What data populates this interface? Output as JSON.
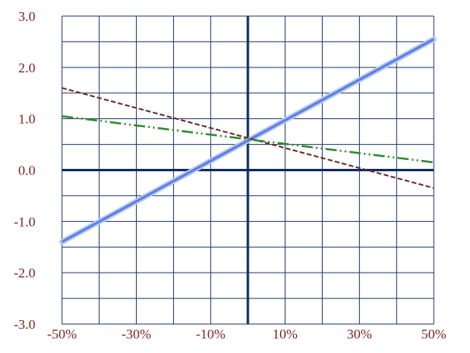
{
  "chart_data": {
    "type": "line",
    "title": "",
    "xlabel": "",
    "ylabel": "",
    "xlim": [
      -0.5,
      0.5
    ],
    "ylim": [
      -3.0,
      3.0
    ],
    "grid": true,
    "x_ticks": [
      "-50%",
      "-30%",
      "-10%",
      "10%",
      "30%",
      "50%"
    ],
    "x_tick_values": [
      -0.5,
      -0.3,
      -0.1,
      0.1,
      0.3,
      0.5
    ],
    "y_ticks": [
      "3.0",
      "2.0",
      "1.0",
      "0.0",
      "-1.0",
      "-2.0",
      "-3.0"
    ],
    "y_tick_values": [
      3.0,
      2.0,
      1.0,
      0.0,
      -1.0,
      -2.0,
      -3.0
    ],
    "series": [
      {
        "x": [
          -0.5,
          0.5
        ],
        "y": [
          -1.4,
          2.55
        ],
        "color": "#5b7fe0",
        "style": "solid"
      },
      {
        "x": [
          -0.5,
          0.5
        ],
        "y": [
          1.6,
          -0.35
        ],
        "color": "#6b2a2a",
        "style": "dashed"
      },
      {
        "x": [
          -0.5,
          0.5
        ],
        "y": [
          1.05,
          0.15
        ],
        "color": "#2e8b2e",
        "style": "dash-dot-dot"
      }
    ],
    "colors": {
      "grid": "#1f3a6e",
      "axis": "#0f2d5e",
      "tick_text": "#7a1f1f"
    }
  }
}
